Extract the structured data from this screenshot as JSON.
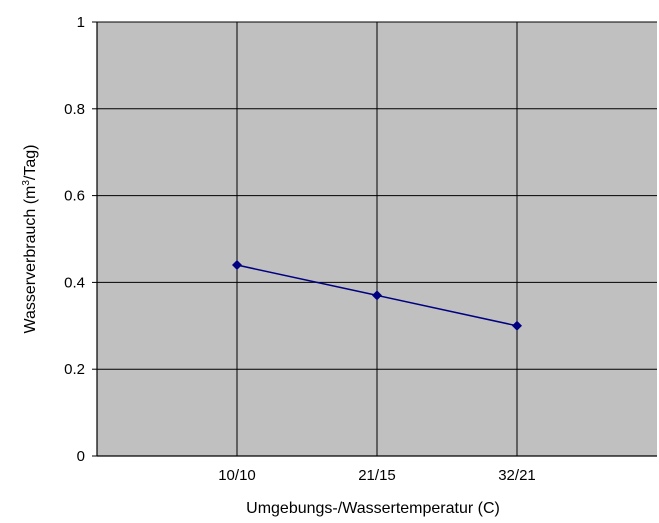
{
  "chart_data": {
    "type": "line",
    "categories": [
      "10/10",
      "21/15",
      "32/21"
    ],
    "series": [
      {
        "values": [
          0.44,
          0.37,
          0.3
        ],
        "color": "#000080",
        "marker": "diamond"
      }
    ],
    "xlabel": "Umgebungs-/Wassertemperatur (C)",
    "ylabel_parts": {
      "before": "Wasserverbrauch (m",
      "sup": "3",
      "after": "/Tag)"
    },
    "ylim": [
      0,
      1
    ],
    "yticks": [
      "0",
      "0.2",
      "0.4",
      "0.6",
      "0.8",
      "1"
    ],
    "grid": true,
    "plot_background": "#c0c0c0"
  }
}
